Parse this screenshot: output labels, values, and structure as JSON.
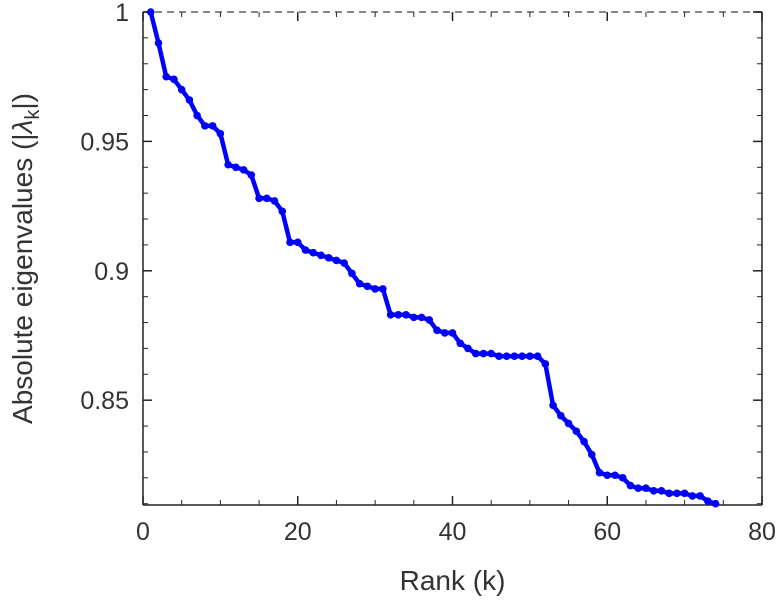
{
  "chart_data": {
    "type": "line",
    "xlabel": "Rank (k)",
    "ylabel": "Absolute eigenvalues (|λk|)",
    "ylabel_parts": {
      "prefix": "Absolute eigenvalues (|",
      "symbol": "λ",
      "subscript": "k",
      "suffix": "|)"
    },
    "xlim": [
      0,
      80
    ],
    "ylim": [
      0.8095,
      1.0
    ],
    "xticks": [
      0,
      20,
      40,
      60,
      80
    ],
    "xtick_labels": [
      "0",
      "20",
      "40",
      "60",
      "80"
    ],
    "yticks": [
      0.85,
      0.9,
      0.95,
      1.0
    ],
    "ytick_labels": [
      "0.85",
      "0.9",
      "0.95",
      "1"
    ],
    "grid": false,
    "reference_line": {
      "y": 1.0,
      "style": "dashed",
      "color": "#888888"
    },
    "series": [
      {
        "color": "#0000ff",
        "marker": "circle",
        "x": [
          1,
          2,
          3,
          4,
          5,
          6,
          7,
          8,
          9,
          10,
          11,
          12,
          13,
          14,
          15,
          16,
          17,
          18,
          19,
          20,
          21,
          22,
          23,
          24,
          25,
          26,
          27,
          28,
          29,
          30,
          31,
          32,
          33,
          34,
          35,
          36,
          37,
          38,
          39,
          40,
          41,
          42,
          43,
          44,
          45,
          46,
          47,
          48,
          49,
          50,
          51,
          52,
          53,
          54,
          55,
          56,
          57,
          58,
          59,
          60,
          61,
          62,
          63,
          64,
          65,
          66,
          67,
          68,
          69,
          70,
          71,
          72,
          73,
          74
        ],
        "y": [
          1.0,
          0.988,
          0.975,
          0.974,
          0.97,
          0.966,
          0.96,
          0.956,
          0.956,
          0.953,
          0.941,
          0.94,
          0.939,
          0.937,
          0.928,
          0.928,
          0.927,
          0.923,
          0.911,
          0.911,
          0.908,
          0.907,
          0.906,
          0.905,
          0.904,
          0.903,
          0.899,
          0.895,
          0.894,
          0.893,
          0.893,
          0.883,
          0.883,
          0.883,
          0.882,
          0.882,
          0.881,
          0.877,
          0.876,
          0.876,
          0.872,
          0.87,
          0.868,
          0.868,
          0.868,
          0.867,
          0.867,
          0.867,
          0.867,
          0.867,
          0.867,
          0.864,
          0.848,
          0.844,
          0.841,
          0.838,
          0.834,
          0.829,
          0.822,
          0.821,
          0.821,
          0.82,
          0.817,
          0.816,
          0.816,
          0.815,
          0.815,
          0.814,
          0.814,
          0.814,
          0.813,
          0.813,
          0.811,
          0.81
        ]
      }
    ]
  }
}
